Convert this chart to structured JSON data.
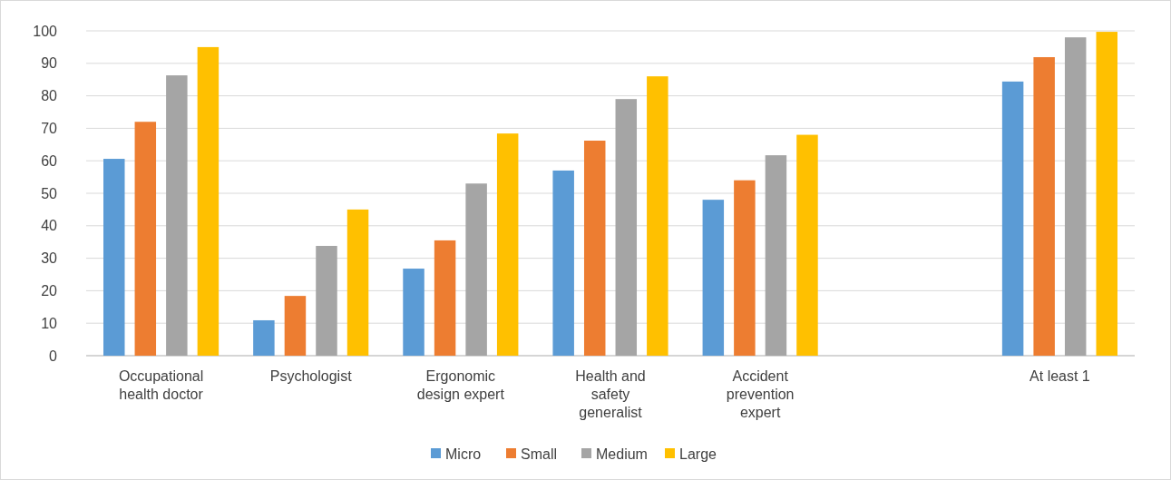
{
  "chart_data": {
    "type": "bar",
    "categories": [
      "Occupational health doctor",
      "Psychologist",
      "Ergonomic design expert",
      "Health and safety generalist",
      "Accident prevention expert",
      null,
      "At least 1"
    ],
    "series": [
      {
        "name": "Micro",
        "color": "#5b9bd5",
        "values": [
          60.6,
          10.9,
          26.8,
          57,
          48,
          null,
          84.4
        ]
      },
      {
        "name": "Small",
        "color": "#ed7d31",
        "values": [
          72,
          18.4,
          35.5,
          66.2,
          54,
          null,
          91.9
        ]
      },
      {
        "name": "Medium",
        "color": "#a5a5a5",
        "values": [
          86.3,
          33.8,
          53,
          79,
          61.7,
          null,
          98
        ]
      },
      {
        "name": "Large",
        "color": "#ffc000",
        "values": [
          95,
          45,
          68.4,
          86,
          68,
          null,
          99.7
        ]
      }
    ],
    "ylim": [
      0,
      100
    ],
    "yticks": [
      0,
      10,
      20,
      30,
      40,
      50,
      60,
      70,
      80,
      90,
      100
    ],
    "grid": "y",
    "legend": "bottom"
  }
}
